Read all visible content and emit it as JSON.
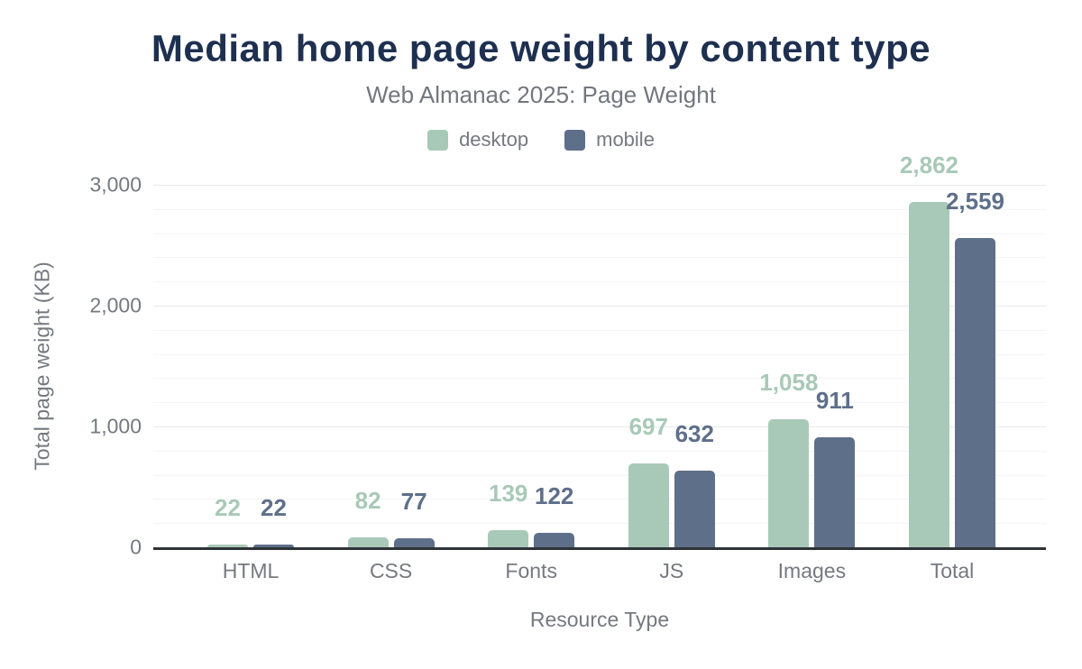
{
  "header": {
    "title": "Median home page weight by content type",
    "subtitle": "Web Almanac 2025: Page Weight"
  },
  "legend": {
    "items": [
      {
        "label": "desktop",
        "color": "#a9c9b8"
      },
      {
        "label": "mobile",
        "color": "#5e6f8a"
      }
    ]
  },
  "chart_data": {
    "type": "bar",
    "title": "Median home page weight by content type",
    "subtitle": "Web Almanac 2025: Page Weight",
    "categories": [
      "HTML",
      "CSS",
      "Fonts",
      "JS",
      "Images",
      "Total"
    ],
    "series": [
      {
        "name": "desktop",
        "color": "#a9c9b8",
        "values": [
          22,
          82,
          139,
          697,
          1058,
          2862
        ],
        "value_labels": [
          "22",
          "82",
          "139",
          "697",
          "1,058",
          "2,862"
        ]
      },
      {
        "name": "mobile",
        "color": "#5e6f8a",
        "values": [
          22,
          77,
          122,
          632,
          911,
          2559
        ],
        "value_labels": [
          "22",
          "77",
          "122",
          "632",
          "911",
          "2,559"
        ]
      }
    ],
    "xlabel": "Resource Type",
    "ylabel": "Total page weight (KB)",
    "ylim": [
      0,
      3000
    ],
    "yticks": [
      0,
      1000,
      2000,
      3000
    ],
    "ytick_labels": [
      "0",
      "1,000",
      "2,000",
      "3,000"
    ],
    "minor_grid_step": 200,
    "major_grid_step": 1000,
    "grid": "horizontal",
    "legend_position": "top"
  },
  "colors": {
    "title": "#1e3050",
    "subtitle": "#72777e",
    "axis_text": "#75797f",
    "axis_line": "#2e3338",
    "grid_major": "#e7e9eb",
    "grid_minor": "#f4f5f6"
  }
}
